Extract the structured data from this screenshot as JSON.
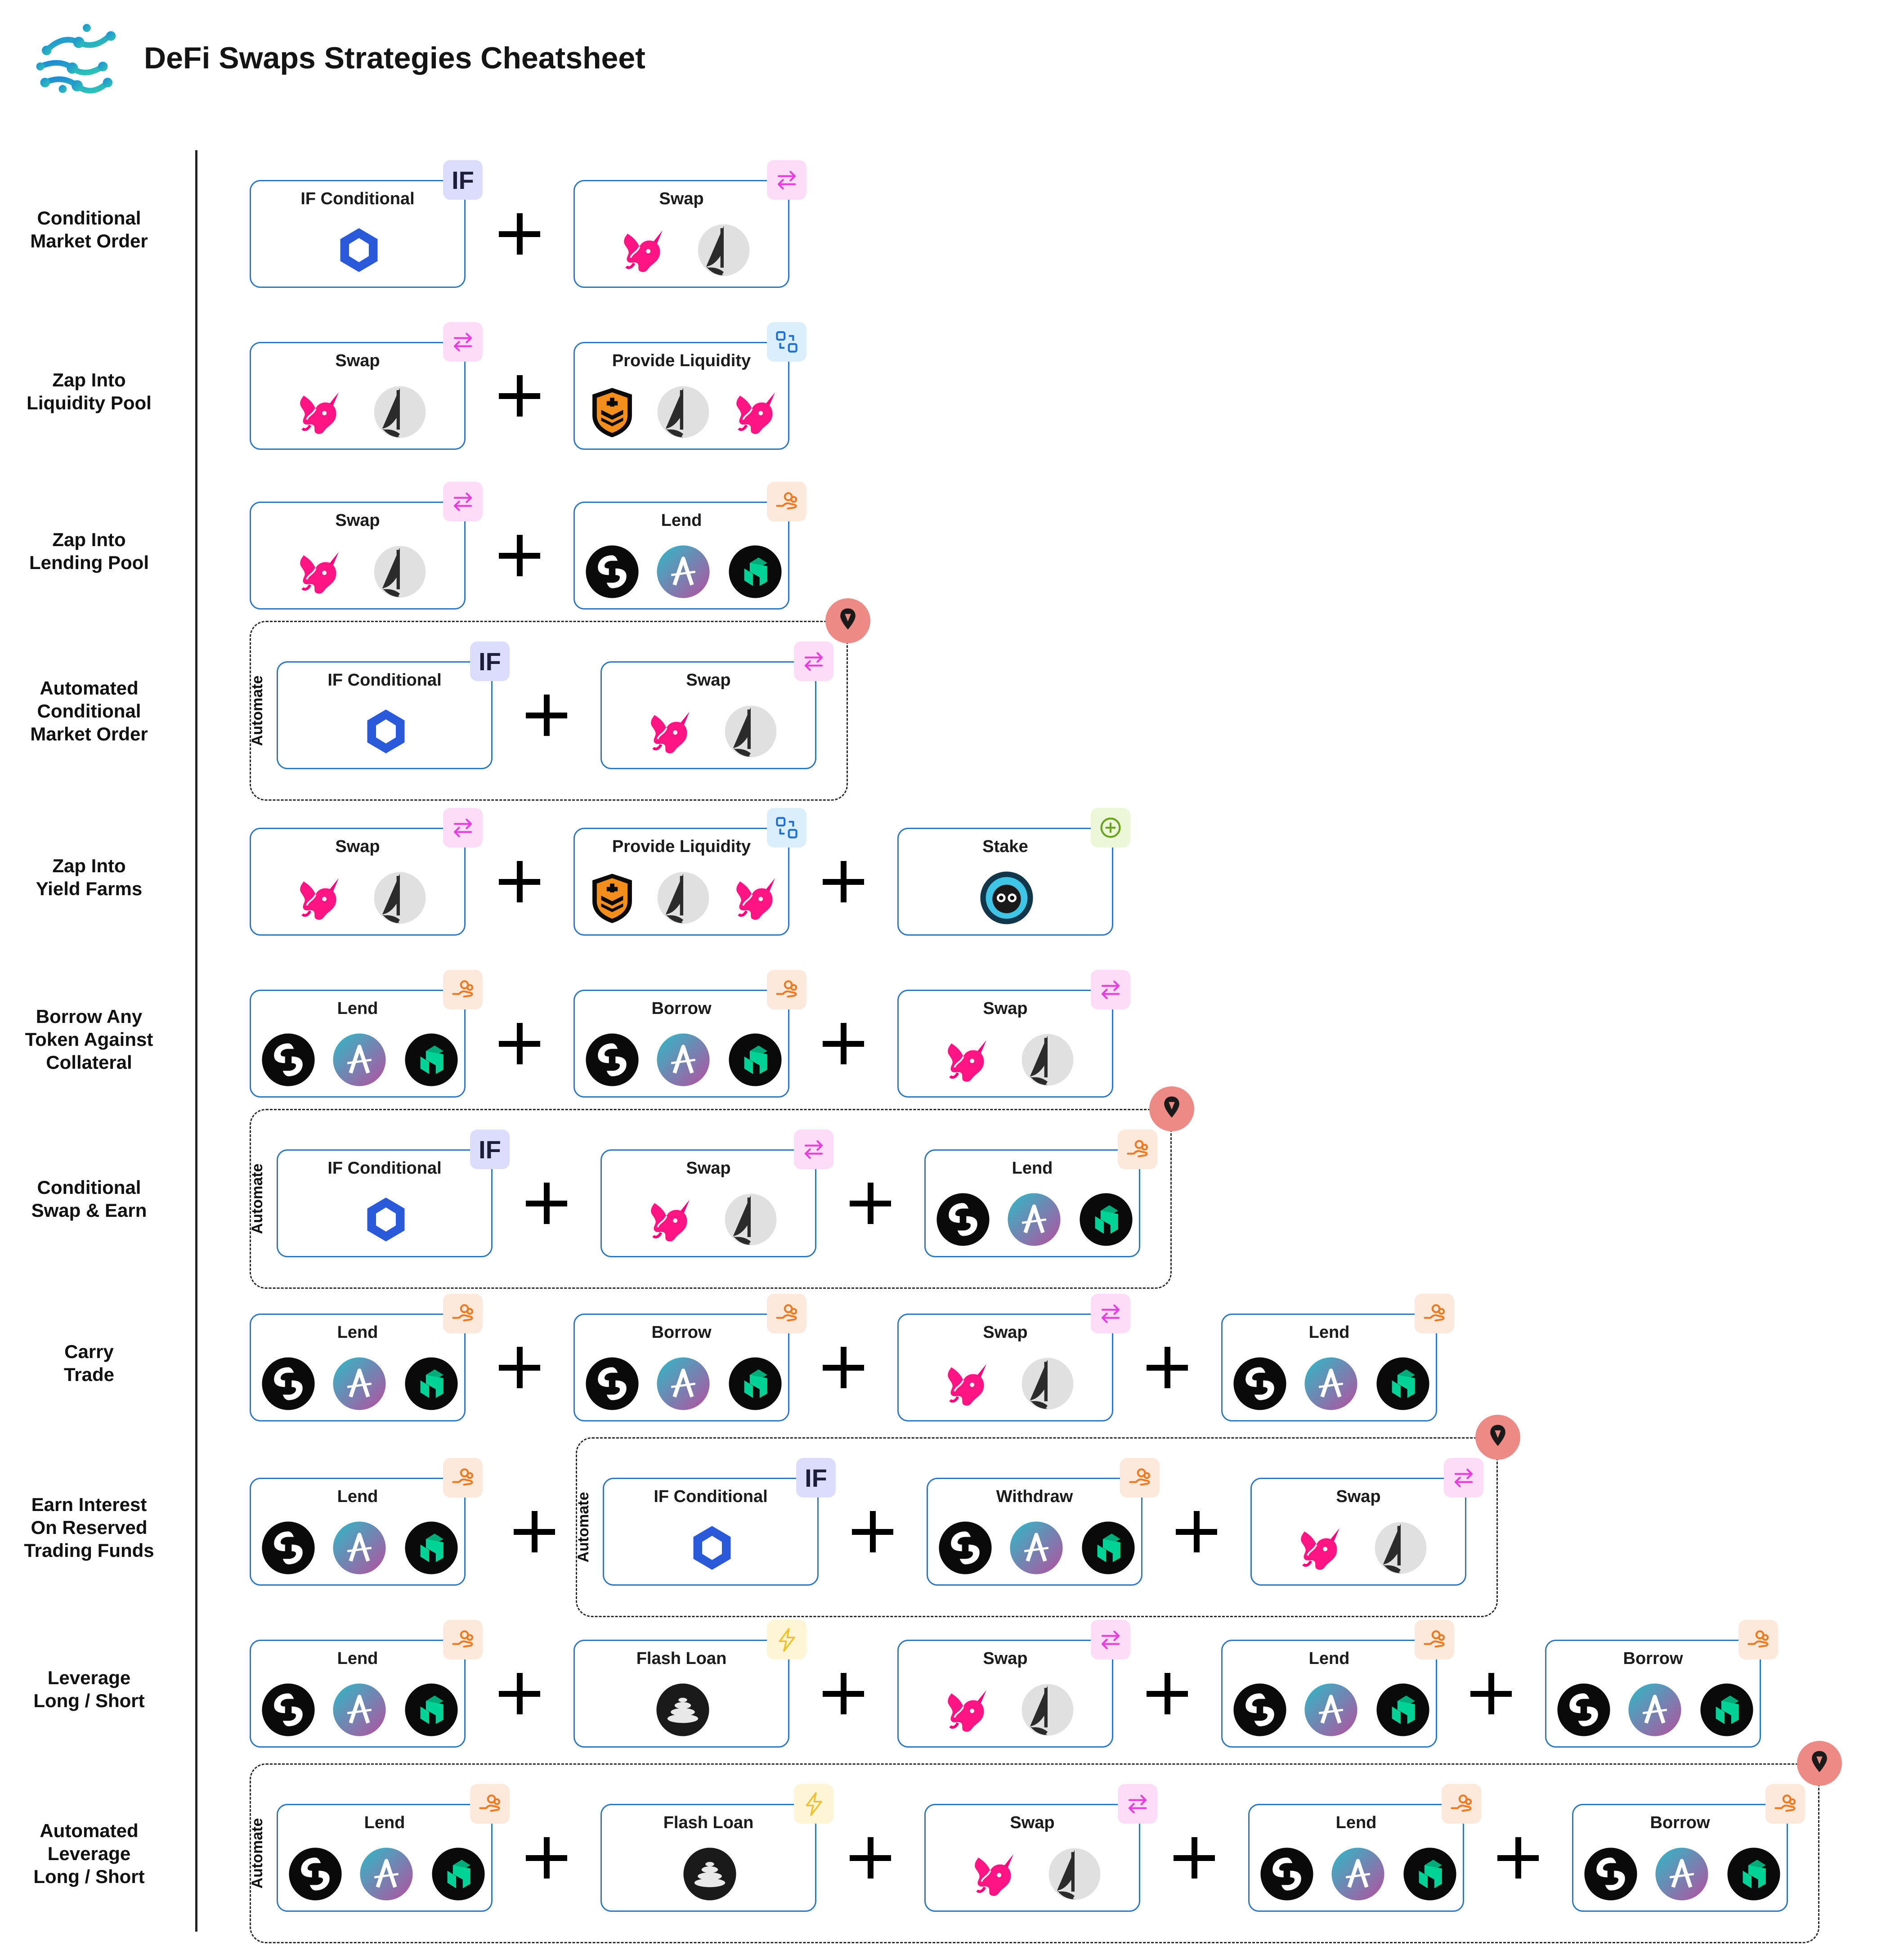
{
  "header": {
    "title": "DeFi Swaps Strategies Cheatsheet",
    "logo": "network-brain-logo"
  },
  "labels": {
    "if": "IF Conditional",
    "swap": "Swap",
    "lp": "Provide Liquidity",
    "lend": "Lend",
    "borrow": "Borrow",
    "stake": "Stake",
    "withdraw": "Withdraw",
    "flash": "Flash Loan",
    "automate": "Automate",
    "if_badge": "IF"
  },
  "colors": {
    "card_border": "#2f78c0",
    "uniswap": "#ff007a",
    "chainlink": "#2a5ada",
    "compound": "#00d395",
    "aave_a": "#2ebac6",
    "aave_b": "#b6509e",
    "badge_swap": "#e83ee0",
    "badge_lend": "#f07a23",
    "badge_lp": "#1f6fd8",
    "badge_stake": "#6aa31e",
    "badge_flash": "#f3c02b",
    "automation_pin": "#ee8a86"
  },
  "rows": [
    {
      "label": "Conditional\nMarket Order",
      "automated": false,
      "steps": [
        "if",
        "swap"
      ]
    },
    {
      "label": "Zap Into\nLiquidity Pool",
      "automated": false,
      "steps": [
        "swap",
        "lp"
      ]
    },
    {
      "label": "Zap Into\nLending Pool",
      "automated": false,
      "steps": [
        "swap",
        "lend"
      ]
    },
    {
      "label": "Automated\nConditional\nMarket Order",
      "automated": true,
      "steps": [
        "if",
        "swap"
      ]
    },
    {
      "label": "Zap Into\nYield Farms",
      "automated": false,
      "steps": [
        "swap",
        "lp",
        "stake"
      ]
    },
    {
      "label": "Borrow Any\nToken Against\nCollateral",
      "automated": false,
      "steps": [
        "lend",
        "borrow",
        "swap"
      ]
    },
    {
      "label": "Conditional\nSwap & Earn",
      "automated": true,
      "steps": [
        "if",
        "swap",
        "lend"
      ]
    },
    {
      "label": "Carry\nTrade",
      "automated": false,
      "steps": [
        "lend",
        "borrow",
        "swap",
        "lend"
      ]
    },
    {
      "label": "Earn Interest\nOn Reserved\nTrading Funds",
      "automated": "partial",
      "steps": [
        "lend",
        "if",
        "withdraw",
        "swap"
      ]
    },
    {
      "label": "Leverage\nLong / Short",
      "automated": false,
      "steps": [
        "lend",
        "flash",
        "swap",
        "lend",
        "borrow"
      ]
    },
    {
      "label": "Automated\nLeverage\nLong / Short",
      "automated": true,
      "steps": [
        "lend",
        "flash",
        "swap",
        "lend",
        "borrow"
      ]
    }
  ]
}
